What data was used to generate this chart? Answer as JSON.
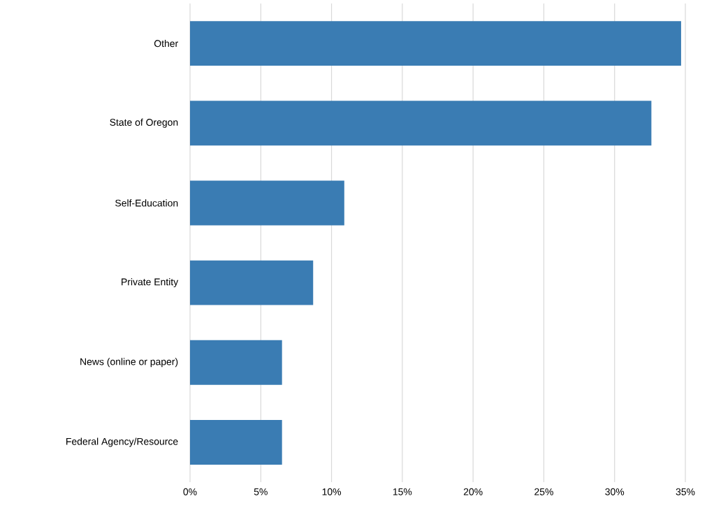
{
  "chart_data": {
    "type": "bar",
    "orientation": "horizontal",
    "categories": [
      "Other",
      "State of Oregon",
      "Self-Education",
      "Private Entity",
      "News (online or paper)",
      "Federal Agency/Resource"
    ],
    "values": [
      34.7,
      32.6,
      10.9,
      8.7,
      6.5,
      6.5
    ],
    "color": "#3a7cb3",
    "xlim": [
      0,
      35
    ],
    "xticks": [
      {
        "value": 0,
        "label": "0%"
      },
      {
        "value": 5,
        "label": "5%"
      },
      {
        "value": 10,
        "label": "10%"
      },
      {
        "value": 15,
        "label": "15%"
      },
      {
        "value": 20,
        "label": "20%"
      },
      {
        "value": 25,
        "label": "25%"
      },
      {
        "value": 30,
        "label": "30%"
      },
      {
        "value": 35,
        "label": "35%"
      }
    ],
    "grid": "x"
  }
}
